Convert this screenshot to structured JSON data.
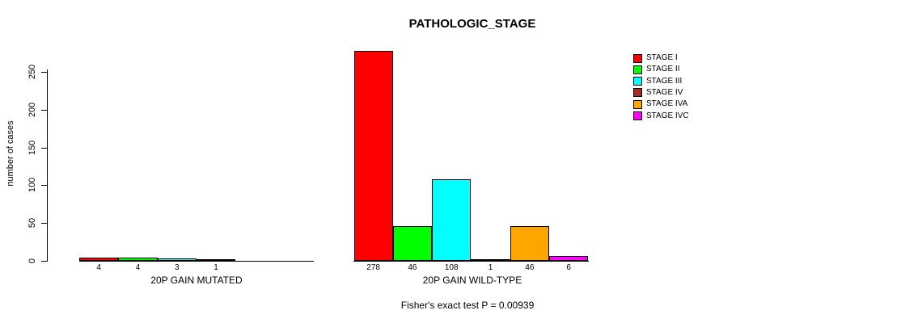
{
  "title": "PATHOLOGIC_STAGE",
  "footer": "Fisher's exact test P = 0.00939",
  "chart_data": {
    "type": "bar",
    "title": "PATHOLOGIC_STAGE",
    "xlabel": "",
    "ylabel": "number of cases",
    "ylim": [
      0,
      250
    ],
    "yticks": [
      0,
      50,
      100,
      150,
      200,
      250
    ],
    "grid": false,
    "legend_position": "right",
    "categories": [
      "STAGE I",
      "STAGE II",
      "STAGE III",
      "STAGE IV",
      "STAGE IVA",
      "STAGE IVC"
    ],
    "colors": [
      "#FF0000",
      "#00FF00",
      "#00FFFF",
      "#A52A2A",
      "#FFA500",
      "#FF00FF"
    ],
    "groups": [
      {
        "label": "20P GAIN MUTATED",
        "values": [
          4,
          4,
          3,
          1,
          0,
          0
        ]
      },
      {
        "label": "20P GAIN WILD-TYPE",
        "values": [
          278,
          46,
          108,
          1,
          46,
          6
        ]
      }
    ],
    "annotation": "Fisher's exact test P = 0.00939"
  }
}
